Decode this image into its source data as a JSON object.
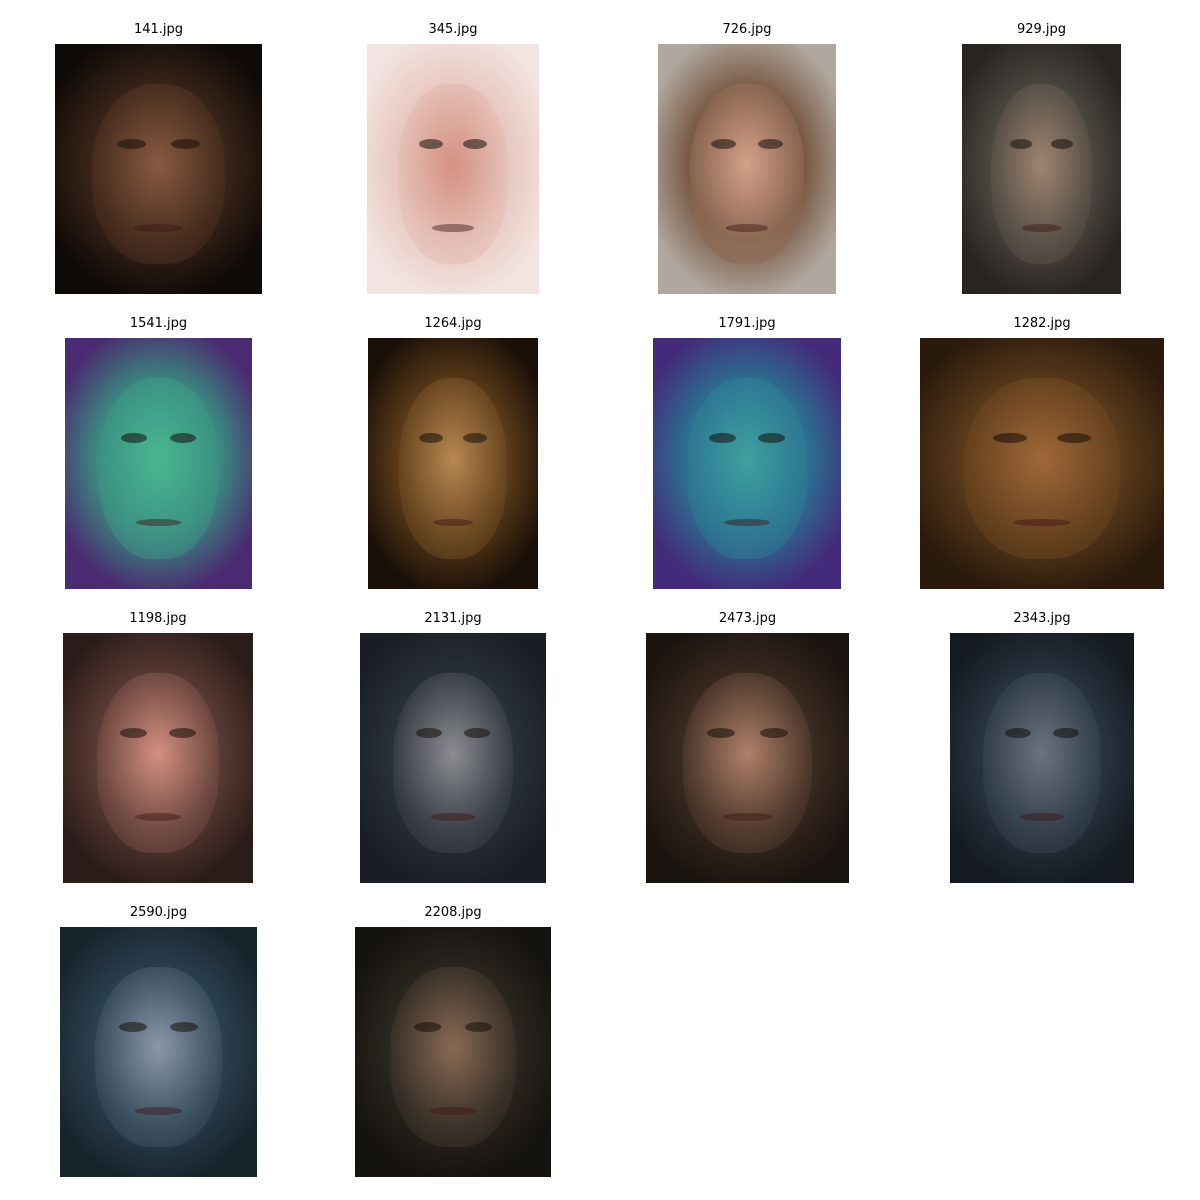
{
  "images": [
    {
      "title": "141.jpg",
      "colors": [
        "#3a2418",
        "#8a5a40",
        "#0e0a08"
      ]
    },
    {
      "title": "345.jpg",
      "colors": [
        "#e8c8c0",
        "#d49080",
        "#f2e4e0"
      ]
    },
    {
      "title": "726.jpg",
      "colors": [
        "#7a5a44",
        "#d4a088",
        "#b0a8a0"
      ]
    },
    {
      "title": "929.jpg",
      "colors": [
        "#4a4640",
        "#a08470",
        "#2a2420"
      ]
    },
    {
      "title": "1541.jpg",
      "colors": [
        "#3a8a80",
        "#48b890",
        "#4a2a70"
      ]
    },
    {
      "title": "1264.jpg",
      "colors": [
        "#5a3a18",
        "#b88850",
        "#1a1008"
      ]
    },
    {
      "title": "1791.jpg",
      "colors": [
        "#2a7090",
        "#3ea0a0",
        "#442a7a"
      ]
    },
    {
      "title": "1282.jpg",
      "colors": [
        "#5a3a1a",
        "#a06838",
        "#2a1a0c"
      ]
    },
    {
      "title": "1198.jpg",
      "colors": [
        "#5a3a34",
        "#d49080",
        "#2a1c18"
      ]
    },
    {
      "title": "2131.jpg",
      "colors": [
        "#2a3038",
        "#8a8c90",
        "#1a1e24"
      ]
    },
    {
      "title": "2473.jpg",
      "colors": [
        "#3a2a20",
        "#b08068",
        "#1a1410"
      ]
    },
    {
      "title": "2343.jpg",
      "colors": [
        "#283440",
        "#6a7480",
        "#141a20"
      ]
    },
    {
      "title": "2590.jpg",
      "colors": [
        "#2a4050",
        "#8a98a8",
        "#18242c"
      ]
    },
    {
      "title": "2208.jpg",
      "colors": [
        "#2a2620",
        "#8a6a54",
        "#14120e"
      ]
    }
  ]
}
